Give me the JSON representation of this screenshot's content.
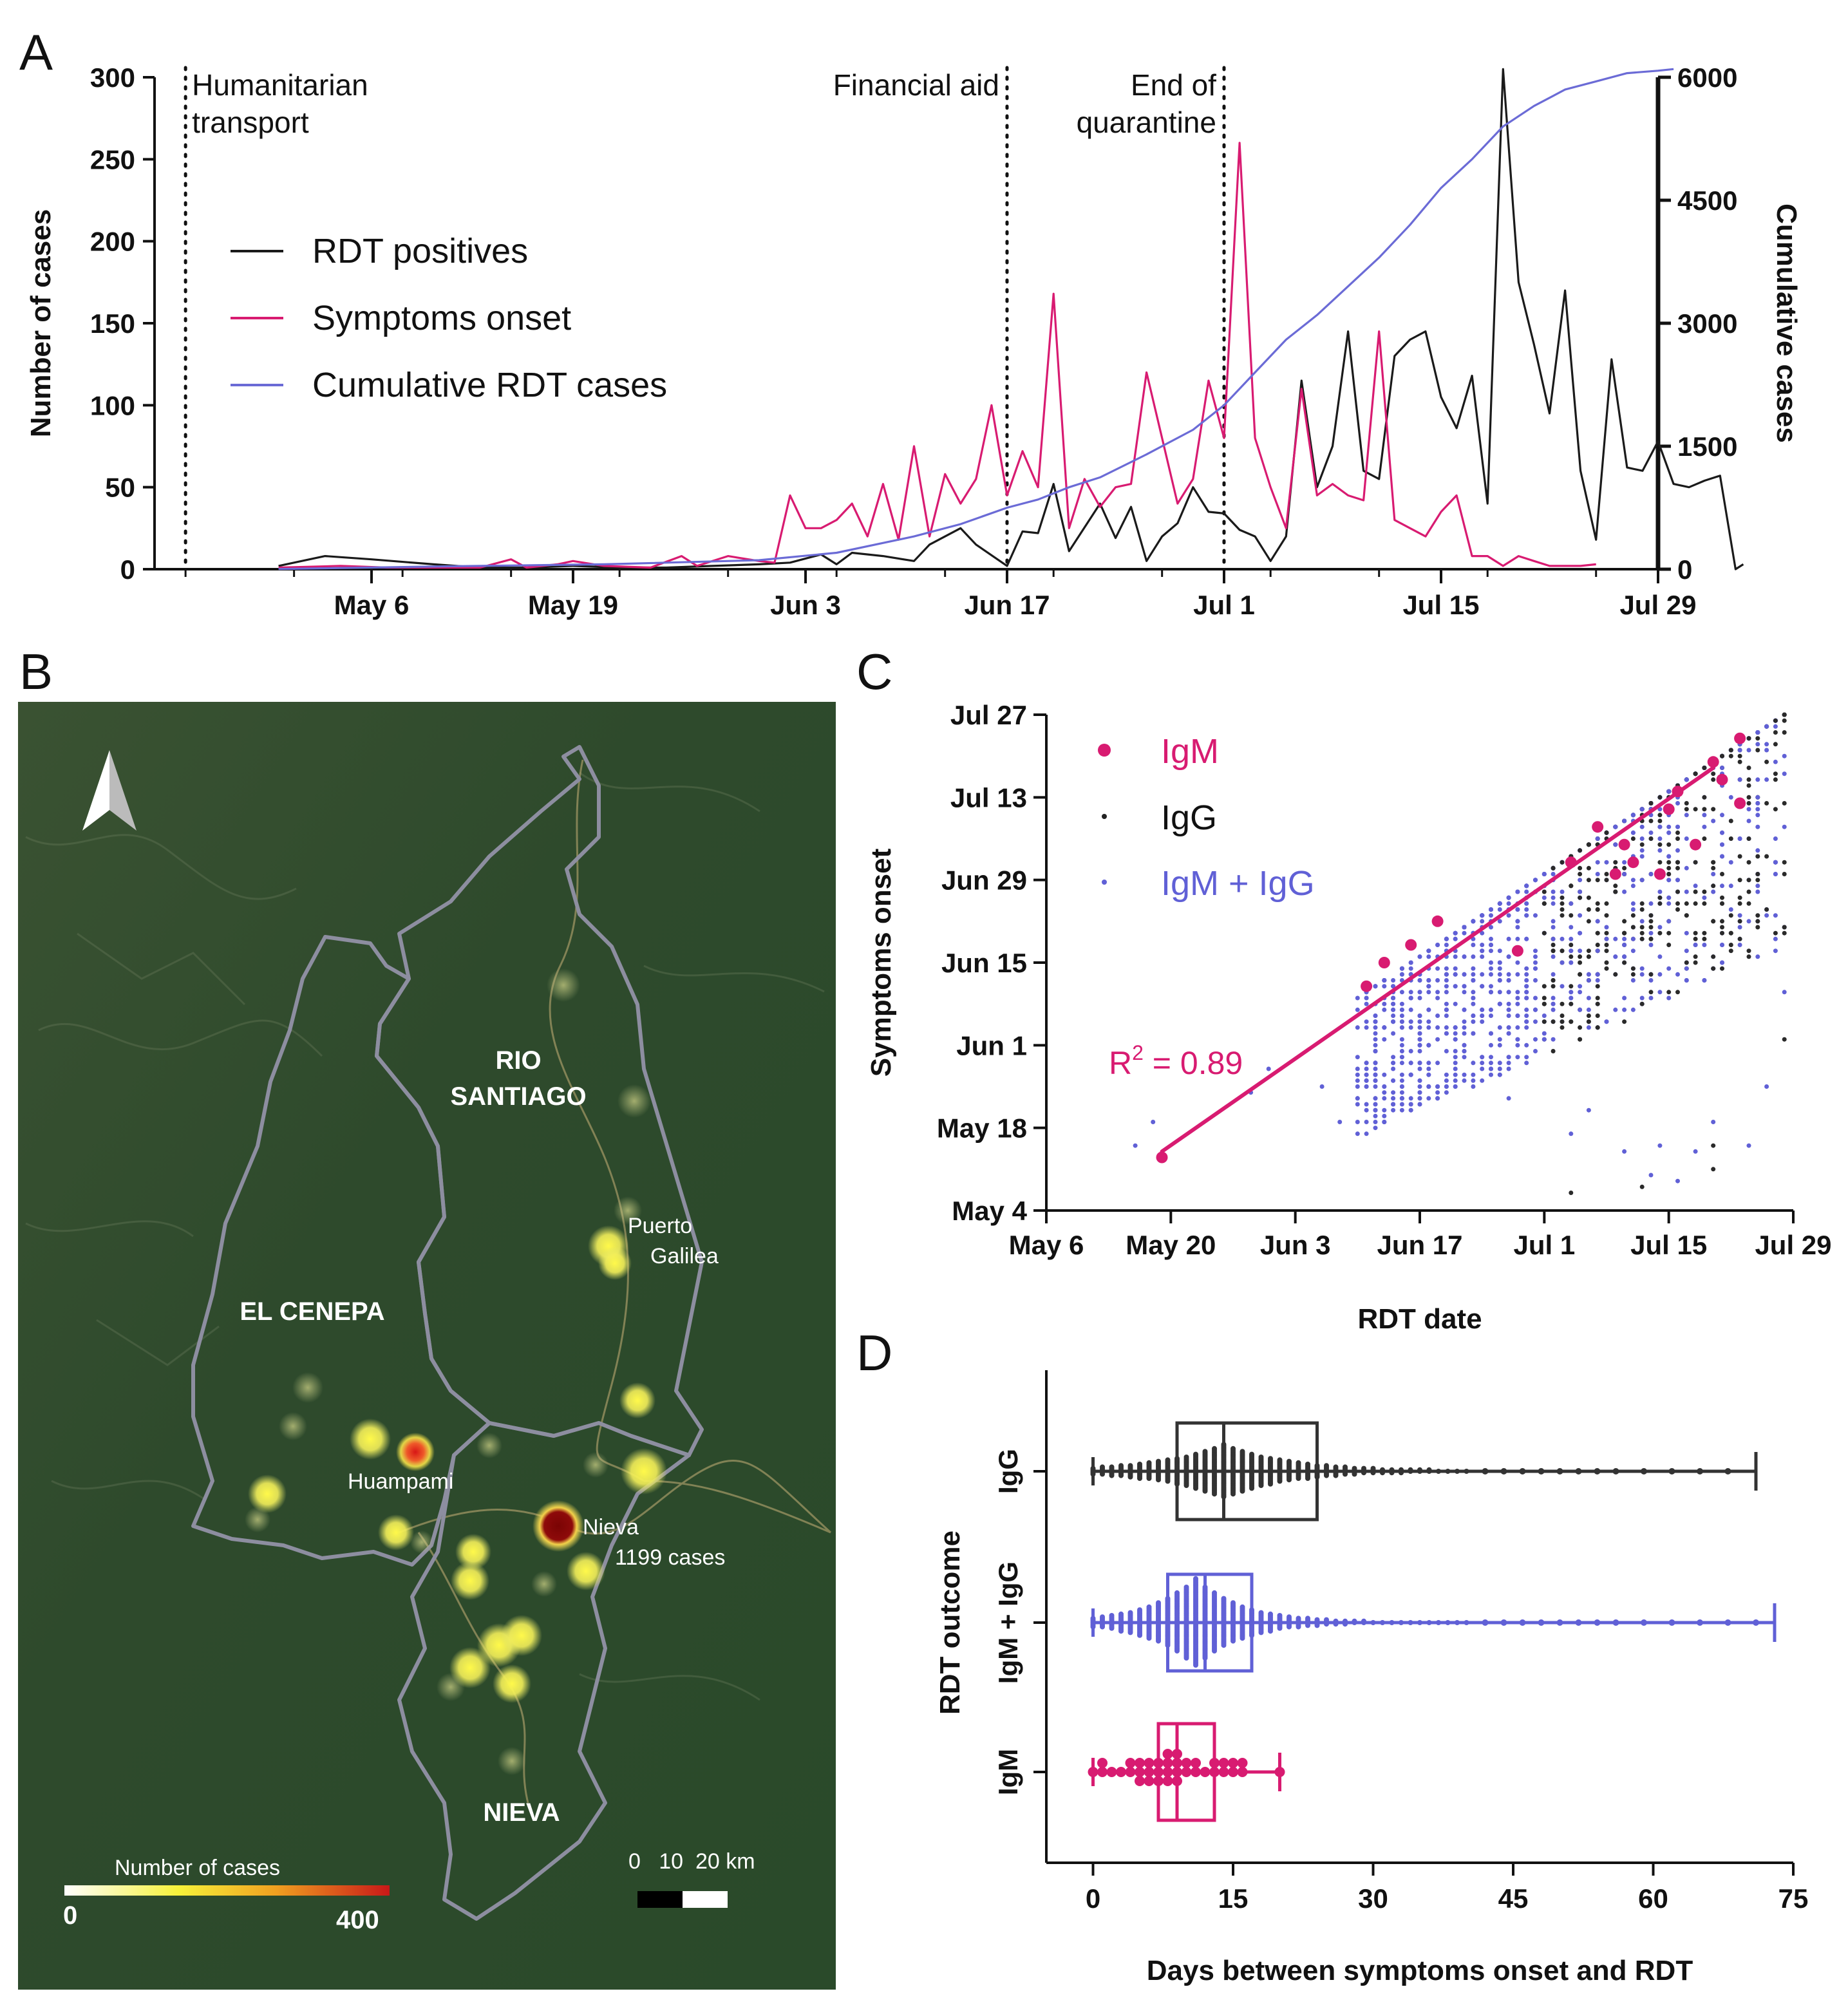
{
  "panel_letters": [
    "A",
    "B",
    "C",
    "D"
  ],
  "chart_data": [
    {
      "panel": "A",
      "type": "line",
      "ylabel": "Number of cases",
      "y2label": "Cumulative cases",
      "ylim": [
        0,
        300
      ],
      "y2lim": [
        0,
        6000
      ],
      "yticks": [
        0,
        50,
        100,
        150,
        200,
        250,
        300
      ],
      "y2ticks": [
        0,
        1500,
        3000,
        4500,
        6000
      ],
      "xrange_days": [
        -9,
        88
      ],
      "xtick_days": [
        5,
        18,
        33,
        46,
        60,
        74,
        88
      ],
      "xtick_labels": [
        "May 6",
        "May 19",
        "Jun 3",
        "Jun 17",
        "Jul 1",
        "Jul 15",
        "Jul 29"
      ],
      "events": [
        {
          "day": -7,
          "label_lines": [
            "Humanitarian",
            "transport"
          ],
          "align": "left"
        },
        {
          "day": 46,
          "label_lines": [
            "Financial aid"
          ],
          "align": "right"
        },
        {
          "day": 60,
          "label_lines": [
            "End of",
            "quarantine"
          ],
          "align": "right"
        }
      ],
      "legend": [
        "RDT positives",
        "Symptoms onset",
        "Cumulative RDT cases"
      ],
      "series": [
        {
          "name": "RDT positives",
          "axis": "left",
          "color": "#1a1a1a",
          "points": [
            [
              -1,
              2
            ],
            [
              2,
              8
            ],
            [
              5,
              6
            ],
            [
              9,
              3
            ],
            [
              12,
              1
            ],
            [
              15,
              1
            ],
            [
              18,
              2
            ],
            [
              21,
              1
            ],
            [
              24,
              1
            ],
            [
              27,
              2
            ],
            [
              30,
              3
            ],
            [
              32,
              4
            ],
            [
              34,
              9
            ],
            [
              35,
              3
            ],
            [
              36,
              10
            ],
            [
              38,
              8
            ],
            [
              40,
              5
            ],
            [
              41,
              15
            ],
            [
              43,
              25
            ],
            [
              44,
              15
            ],
            [
              46,
              2
            ],
            [
              47,
              23
            ],
            [
              48,
              22
            ],
            [
              49,
              52
            ],
            [
              50,
              11
            ],
            [
              52,
              40
            ],
            [
              53,
              19
            ],
            [
              54,
              38
            ],
            [
              55,
              5
            ],
            [
              56,
              20
            ],
            [
              57,
              28
            ],
            [
              58,
              50
            ],
            [
              59,
              35
            ],
            [
              60,
              34
            ],
            [
              61,
              24
            ],
            [
              62,
              20
            ],
            [
              63,
              5
            ],
            [
              64,
              20
            ],
            [
              65,
              115
            ],
            [
              66,
              50
            ],
            [
              67,
              75
            ],
            [
              68,
              145
            ],
            [
              69,
              60
            ],
            [
              70,
              55
            ],
            [
              71,
              130
            ],
            [
              72,
              140
            ],
            [
              73,
              145
            ],
            [
              74,
              105
            ],
            [
              75,
              86
            ],
            [
              76,
              118
            ],
            [
              77,
              40
            ],
            [
              78,
              305
            ],
            [
              79,
              175
            ],
            [
              80,
              137
            ],
            [
              81,
              95
            ],
            [
              82,
              170
            ],
            [
              83,
              60
            ],
            [
              84,
              18
            ],
            [
              85,
              128
            ],
            [
              86,
              62
            ],
            [
              87,
              60
            ],
            [
              88,
              78
            ],
            [
              89,
              52
            ],
            [
              90,
              50
            ],
            [
              91,
              54
            ],
            [
              92,
              57
            ],
            [
              93,
              0
            ],
            [
              93.5,
              3
            ]
          ]
        },
        {
          "name": "Symptoms onset",
          "axis": "left",
          "color": "#d81b71",
          "points": [
            [
              -1,
              1
            ],
            [
              3,
              2
            ],
            [
              6,
              1
            ],
            [
              9,
              1
            ],
            [
              12,
              1
            ],
            [
              14,
              6
            ],
            [
              15,
              1
            ],
            [
              17,
              3
            ],
            [
              18,
              5
            ],
            [
              20,
              2
            ],
            [
              23,
              1
            ],
            [
              25,
              8
            ],
            [
              26,
              2
            ],
            [
              28,
              8
            ],
            [
              30,
              5
            ],
            [
              31,
              4
            ],
            [
              32,
              45
            ],
            [
              33,
              25
            ],
            [
              34,
              25
            ],
            [
              35,
              30
            ],
            [
              36,
              40
            ],
            [
              37,
              20
            ],
            [
              38,
              52
            ],
            [
              39,
              18
            ],
            [
              40,
              75
            ],
            [
              41,
              20
            ],
            [
              42,
              58
            ],
            [
              43,
              40
            ],
            [
              44,
              55
            ],
            [
              45,
              100
            ],
            [
              46,
              45
            ],
            [
              47,
              72
            ],
            [
              48,
              50
            ],
            [
              49,
              168
            ],
            [
              50,
              25
            ],
            [
              51,
              55
            ],
            [
              52,
              38
            ],
            [
              53,
              50
            ],
            [
              54,
              52
            ],
            [
              55,
              120
            ],
            [
              56,
              80
            ],
            [
              57,
              40
            ],
            [
              58,
              55
            ],
            [
              59,
              115
            ],
            [
              60,
              80
            ],
            [
              61,
              260
            ],
            [
              62,
              80
            ],
            [
              63,
              50
            ],
            [
              64,
              25
            ],
            [
              65,
              110
            ],
            [
              66,
              45
            ],
            [
              67,
              52
            ],
            [
              68,
              45
            ],
            [
              69,
              42
            ],
            [
              70,
              145
            ],
            [
              71,
              30
            ],
            [
              72,
              25
            ],
            [
              73,
              20
            ],
            [
              74,
              35
            ],
            [
              75,
              45
            ],
            [
              76,
              8
            ],
            [
              77,
              8
            ],
            [
              78,
              2
            ],
            [
              79,
              8
            ],
            [
              80,
              5
            ],
            [
              81,
              2
            ],
            [
              82,
              2
            ],
            [
              83,
              2
            ],
            [
              84,
              3
            ]
          ]
        },
        {
          "name": "Cumulative RDT cases",
          "axis": "right",
          "color": "#6b6bd6",
          "points": [
            [
              -1,
              2
            ],
            [
              10,
              35
            ],
            [
              20,
              60
            ],
            [
              30,
              110
            ],
            [
              35,
              200
            ],
            [
              40,
              400
            ],
            [
              43,
              550
            ],
            [
              46,
              750
            ],
            [
              48,
              850
            ],
            [
              50,
              1000
            ],
            [
              52,
              1120
            ],
            [
              55,
              1400
            ],
            [
              58,
              1700
            ],
            [
              60,
              2000
            ],
            [
              62,
              2400
            ],
            [
              64,
              2800
            ],
            [
              66,
              3100
            ],
            [
              68,
              3450
            ],
            [
              70,
              3800
            ],
            [
              72,
              4200
            ],
            [
              74,
              4650
            ],
            [
              76,
              5000
            ],
            [
              78,
              5400
            ],
            [
              80,
              5650
            ],
            [
              82,
              5850
            ],
            [
              84,
              5950
            ],
            [
              86,
              6050
            ],
            [
              88,
              6080
            ],
            [
              89,
              6100
            ]
          ]
        }
      ]
    },
    {
      "panel": "C",
      "type": "scatter",
      "xlabel": "RDT date",
      "ylabel": "Symptoms onset",
      "xtick_labels": [
        "May 6",
        "May 20",
        "Jun 3",
        "Jun 17",
        "Jul 1",
        "Jul 15",
        "Jul 29"
      ],
      "ytick_labels": [
        "May 4",
        "May 18",
        "Jun 1",
        "Jun 15",
        "Jun 29",
        "Jul 13",
        "Jul 27"
      ],
      "xlim_days": [
        5,
        89
      ],
      "ylim_days": [
        3,
        87
      ],
      "legend": [
        "IgM",
        "IgG",
        "IgM + IgG"
      ],
      "fit_line": {
        "x": [
          18,
          80
        ],
        "y": [
          13,
          78
        ]
      },
      "r2_label": "R",
      "r2_sup": "2",
      "r2_value": " = 0.89",
      "igm_points": [
        [
          18,
          12
        ],
        [
          41,
          41
        ],
        [
          43,
          45
        ],
        [
          46,
          48
        ],
        [
          49,
          52
        ],
        [
          58,
          47
        ],
        [
          64,
          62
        ],
        [
          67,
          68
        ],
        [
          70,
          65
        ],
        [
          69,
          60
        ],
        [
          71,
          62
        ],
        [
          74,
          60
        ],
        [
          75,
          71
        ],
        [
          76,
          74
        ],
        [
          78,
          65
        ],
        [
          80,
          79
        ],
        [
          81,
          76
        ],
        [
          83,
          83
        ],
        [
          83,
          72
        ]
      ]
    },
    {
      "panel": "D",
      "type": "box",
      "xlabel": "Days between symptoms onset and RDT",
      "ylabel": "RDT outcome",
      "xlim": [
        -5,
        75
      ],
      "xticks": [
        0,
        15,
        30,
        45,
        60,
        75
      ],
      "categories": [
        "IgG",
        "IgM + IgG",
        "IgM"
      ],
      "boxes": [
        {
          "name": "IgG",
          "color": "#333333",
          "min": 0,
          "q1": 9,
          "median": 14,
          "q3": 24,
          "max": 71
        },
        {
          "name": "IgM + IgG",
          "color": "#6060d6",
          "min": 0,
          "q1": 8,
          "median": 12,
          "q3": 17,
          "max": 73
        },
        {
          "name": "IgM",
          "color": "#d81b71",
          "min": 0,
          "q1": 7,
          "median": 9,
          "q3": 13,
          "max": 20
        }
      ]
    }
  ],
  "map": {
    "regions": [
      "RIO",
      "SANTIAGO",
      "EL CENEPA",
      "NIEVA"
    ],
    "towns": [
      {
        "lines": [
          "Puerto",
          "Galilea"
        ]
      },
      {
        "lines": [
          "Huampami"
        ]
      },
      {
        "lines": [
          "Nieva",
          "1199 cases"
        ]
      }
    ],
    "colorbar_title": "Number of cases",
    "colorbar_min": "0",
    "colorbar_max": "400",
    "scale_label": "0   10  20 km"
  }
}
